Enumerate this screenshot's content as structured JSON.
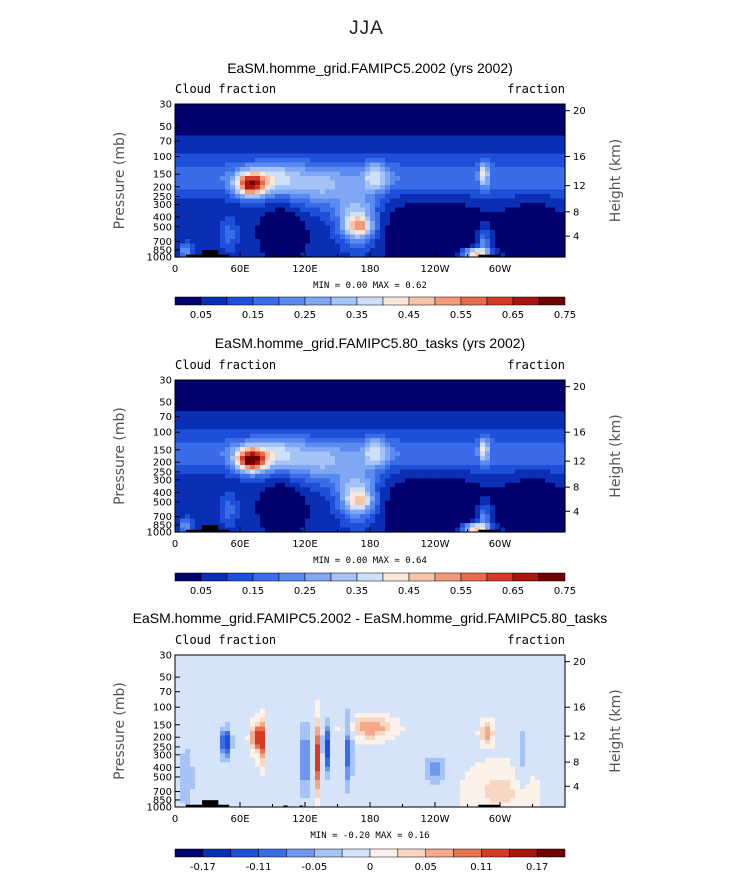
{
  "page_title": "JJA",
  "colors": {
    "seq_scale": [
      "#00006e",
      "#0a2fb4",
      "#1e4fd8",
      "#3b6ce8",
      "#5b8af0",
      "#7fa7f4",
      "#a6c3f7",
      "#cddff9",
      "#fbe7da",
      "#f7c4aa",
      "#f29a7a",
      "#ea6a4c",
      "#d43b24",
      "#a8160e",
      "#6e0000"
    ],
    "diff_scale": [
      "#00006e",
      "#0a2fb4",
      "#1e4fd8",
      "#3b6ce8",
      "#6e97f2",
      "#a6c3f7",
      "#d6e4fa",
      "#fdf2ea",
      "#f9d6c2",
      "#f3a98a",
      "#e8744f",
      "#d43b24",
      "#a8160e",
      "#6e0000"
    ]
  },
  "chart_data": [
    {
      "type": "heatmap",
      "title": "EaSM.homme_grid.FAMIPC5.2002 (yrs 2002)",
      "left_label": "Cloud fraction",
      "right_label": "fraction",
      "ylabel": "Pressure (mb)",
      "y2label": "Height (km)",
      "x_ticks": [
        "0",
        "60E",
        "120E",
        "180",
        "120W",
        "60W"
      ],
      "y_ticks": [
        "30",
        "50",
        "70",
        "100",
        "150",
        "200",
        "250",
        "300",
        "400",
        "500",
        "700",
        "850",
        "1000"
      ],
      "y2_ticks": [
        "20",
        "16",
        "12",
        "8",
        "4"
      ],
      "stats": "MIN =    0.00   MAX =    0.62",
      "colorbar_labels": [
        "0.05",
        "0.15",
        "0.25",
        "0.35",
        "0.45",
        "0.55",
        "0.65",
        "0.75"
      ],
      "ylim": [
        1000,
        30
      ],
      "xlim": [
        0,
        360
      ],
      "min": 0.0,
      "max": 0.62
    },
    {
      "type": "heatmap",
      "title": "EaSM.homme_grid.FAMIPC5.80_tasks (yrs 2002)",
      "left_label": "Cloud fraction",
      "right_label": "fraction",
      "ylabel": "Pressure (mb)",
      "y2label": "Height (km)",
      "x_ticks": [
        "0",
        "60E",
        "120E",
        "180",
        "120W",
        "60W"
      ],
      "y_ticks": [
        "30",
        "50",
        "70",
        "100",
        "150",
        "200",
        "250",
        "300",
        "400",
        "500",
        "700",
        "850",
        "1000"
      ],
      "y2_ticks": [
        "20",
        "16",
        "12",
        "8",
        "4"
      ],
      "stats": "MIN =    0.00   MAX =    0.64",
      "colorbar_labels": [
        "0.05",
        "0.15",
        "0.25",
        "0.35",
        "0.45",
        "0.55",
        "0.65",
        "0.75"
      ],
      "ylim": [
        1000,
        30
      ],
      "xlim": [
        0,
        360
      ],
      "min": 0.0,
      "max": 0.64
    },
    {
      "type": "heatmap",
      "title": "EaSM.homme_grid.FAMIPC5.2002 - EaSM.homme_grid.FAMIPC5.80_tasks",
      "left_label": "Cloud fraction",
      "right_label": "fraction",
      "ylabel": "Pressure (mb)",
      "y2label": "Height (km)",
      "x_ticks": [
        "0",
        "60E",
        "120E",
        "180",
        "120W",
        "60W"
      ],
      "y_ticks": [
        "30",
        "50",
        "70",
        "100",
        "150",
        "200",
        "250",
        "300",
        "400",
        "500",
        "700",
        "850",
        "1000"
      ],
      "y2_ticks": [
        "20",
        "16",
        "12",
        "8",
        "4"
      ],
      "stats": "MIN =   -0.20   MAX =    0.16",
      "colorbar_labels": [
        "-0.17",
        "-0.11",
        "-0.05",
        "0",
        "0.05",
        "0.11",
        "0.17"
      ],
      "ylim": [
        1000,
        30
      ],
      "xlim": [
        0,
        360
      ],
      "min": -0.2,
      "max": 0.16
    }
  ]
}
